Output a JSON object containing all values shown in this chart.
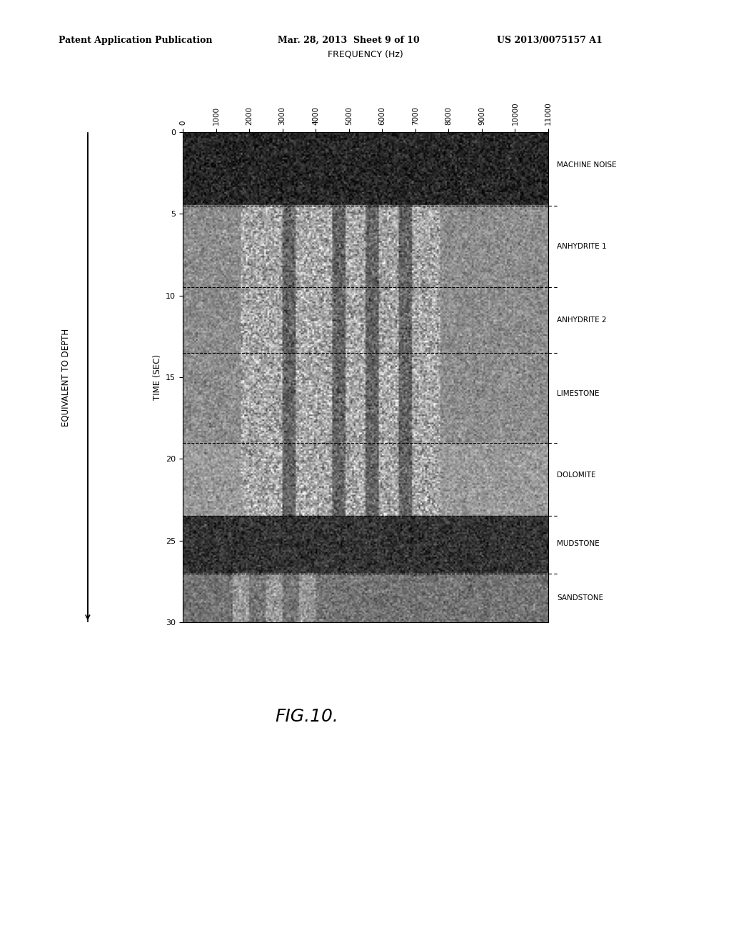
{
  "header_left": "Patent Application Publication",
  "header_mid": "Mar. 28, 2013  Sheet 9 of 10",
  "header_right": "US 2013/0075157 A1",
  "xlabel": "FREQUENCY (Hz)",
  "ylabel_time": "TIME (SEC)",
  "ylabel_depth": "EQUIVALENT TO DEPTH",
  "x_ticks": [
    0,
    1000,
    2000,
    3000,
    4000,
    5000,
    6000,
    7000,
    8000,
    9000,
    10000,
    11000
  ],
  "y_ticks": [
    0,
    5,
    10,
    15,
    20,
    25,
    30
  ],
  "y_min": 0,
  "y_max": 30,
  "x_min": 0,
  "x_max": 11000,
  "layers": [
    {
      "name": "MACHINE NOISE",
      "y_start": 0,
      "y_end": 4.5,
      "brightness": 0.15
    },
    {
      "name": "ANHYDRITE 1",
      "y_start": 4.5,
      "y_end": 9.5,
      "brightness": 0.55
    },
    {
      "name": "ANHYDRITE 2",
      "y_start": 9.5,
      "y_end": 13.5,
      "brightness": 0.55
    },
    {
      "name": "LIMESTONE",
      "y_start": 13.5,
      "y_end": 19.0,
      "brightness": 0.55
    },
    {
      "name": "DOLOMITE",
      "y_start": 19.0,
      "y_end": 23.5,
      "brightness": 0.6
    },
    {
      "name": "MUDSTONE",
      "y_start": 23.5,
      "y_end": 27.0,
      "brightness": 0.2
    },
    {
      "name": "SANDSTONE",
      "y_start": 27.0,
      "y_end": 30.0,
      "brightness": 0.45
    }
  ],
  "divider_times": [
    4.5,
    9.5,
    13.5,
    19.0,
    23.5,
    27.0
  ],
  "label_times": [
    2.0,
    7.0,
    11.5,
    16.0,
    21.0,
    25.2,
    28.5
  ],
  "fig_label": "FIG.10.",
  "background_color": "#ffffff",
  "plot_bg_dark": 0.15,
  "plot_bg_light": 0.7
}
